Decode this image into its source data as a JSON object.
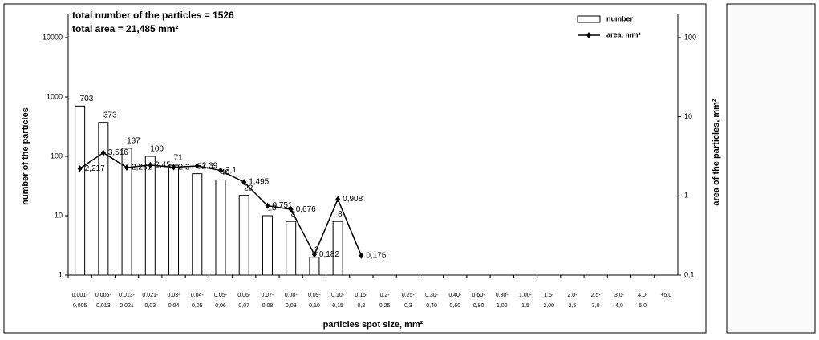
{
  "chart_data": {
    "type": "bar-line",
    "title": "total number of the particles = 1526",
    "subtitle": "total area = 21,485 mm²",
    "x_label": "particles spot size, mm²",
    "y_label": "number of the particles",
    "y2_label": "area of the particles, mm²",
    "categories": [
      [
        "0,001-",
        "0,005"
      ],
      [
        "0,005-",
        "0,013"
      ],
      [
        "0,013-",
        "0,021"
      ],
      [
        "0,021-",
        "0,03"
      ],
      [
        "0,03-",
        "0,04"
      ],
      [
        "0,04-",
        "0,05"
      ],
      [
        "0,05-",
        "0,06"
      ],
      [
        "0,06-",
        "0,07"
      ],
      [
        "0,07-",
        "0,08"
      ],
      [
        "0,08-",
        "0,09"
      ],
      [
        "0,09-",
        "0,10"
      ],
      [
        "0,10-",
        "0,15"
      ],
      [
        "0,15-",
        "0,2"
      ],
      [
        "0,2-",
        "0,25"
      ],
      [
        "0,25-",
        "0,3"
      ],
      [
        "0,30-",
        "0,40"
      ],
      [
        "0,40-",
        "0,60"
      ],
      [
        "0,60-",
        "0,80"
      ],
      [
        "0,80-",
        "1,00"
      ],
      [
        "1,00-",
        "1,5"
      ],
      [
        "1,5-",
        "2,00"
      ],
      [
        "2,0-",
        "2,5"
      ],
      [
        "2,5-",
        "3,0"
      ],
      [
        "3,0-",
        "4,0"
      ],
      [
        "4,0-",
        "5,0"
      ],
      [
        "+5,0"
      ]
    ],
    "series": [
      {
        "name": "number",
        "kind": "bar",
        "color": "#ffffff",
        "values": [
          703,
          373,
          137,
          100,
          71,
          51,
          40,
          22,
          10,
          8,
          2,
          8,
          null,
          null,
          null,
          null,
          null,
          null,
          null,
          null,
          null,
          null,
          null,
          null,
          null,
          null
        ]
      },
      {
        "name": "area, mm²",
        "kind": "line",
        "axis": "y2",
        "color": "#000000",
        "values": [
          2.217,
          3.516,
          2.281,
          2.45,
          2.3,
          2.39,
          2.1,
          1.495,
          0.751,
          0.676,
          0.182,
          0.908,
          0.176,
          null,
          null,
          null,
          null,
          null,
          null,
          null,
          null,
          null,
          null,
          null,
          null,
          null
        ],
        "value_labels": [
          "2,217",
          "3,516",
          "2,281",
          "2,45",
          "2,3",
          "2,39",
          "2,1",
          "1,495",
          "0,751",
          "0,676",
          "0,182",
          "0,908",
          "0,176",
          null,
          null,
          null,
          null,
          null,
          null,
          null,
          null,
          null,
          null,
          null,
          null,
          null
        ]
      }
    ],
    "ylim": [
      1,
      10000
    ],
    "yticks": [
      1,
      10,
      100,
      1000,
      10000
    ],
    "log_y": true,
    "y2lim": [
      0.1,
      100
    ],
    "y2ticks": [
      {
        "value": 0.1,
        "label": "0,1"
      },
      1,
      10,
      100
    ],
    "log_y2": true,
    "legend": "upper right"
  }
}
